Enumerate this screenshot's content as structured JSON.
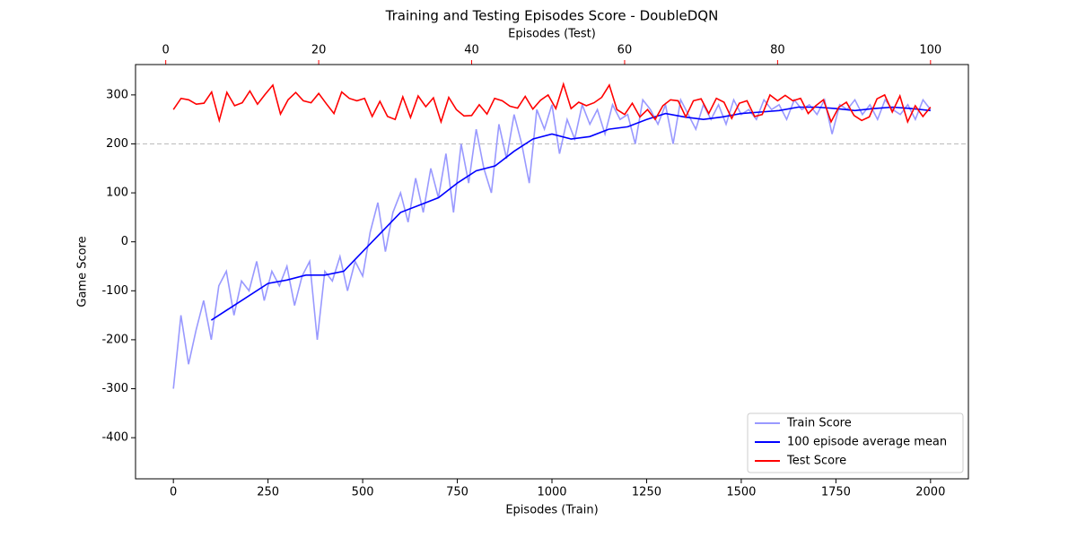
{
  "chart_data": {
    "type": "line",
    "title": "Training and Testing Episodes Score - DoubleDQN",
    "x_label": "Episodes (Train)",
    "x2_label": "Episodes (Test)",
    "y_label": "Game Score",
    "xlim": [
      -100,
      2100
    ],
    "xticks": [
      0,
      250,
      500,
      750,
      1000,
      1250,
      1500,
      1750,
      2000
    ],
    "x2lim": [
      -3.95,
      104.95
    ],
    "x2ticks": [
      0,
      20,
      40,
      60,
      80,
      100
    ],
    "x2_color": "#ff0000",
    "ylim": [
      -484,
      362
    ],
    "yticks": [
      -400,
      -300,
      -200,
      -100,
      0,
      100,
      200,
      300
    ],
    "reference_line": 200,
    "legend": "lower right",
    "series": [
      {
        "name": "Train Score",
        "color": "#9999ff",
        "x": [
          0,
          20,
          40,
          60,
          80,
          100,
          120,
          140,
          160,
          180,
          200,
          220,
          240,
          260,
          280,
          300,
          320,
          340,
          360,
          380,
          400,
          420,
          440,
          460,
          480,
          500,
          520,
          540,
          560,
          580,
          600,
          620,
          640,
          660,
          680,
          700,
          720,
          740,
          760,
          780,
          800,
          820,
          840,
          860,
          880,
          900,
          920,
          940,
          960,
          980,
          1000,
          1020,
          1040,
          1060,
          1080,
          1100,
          1120,
          1140,
          1160,
          1180,
          1200,
          1220,
          1240,
          1260,
          1280,
          1300,
          1320,
          1340,
          1360,
          1380,
          1400,
          1420,
          1440,
          1460,
          1480,
          1500,
          1520,
          1540,
          1560,
          1580,
          1600,
          1620,
          1640,
          1660,
          1680,
          1700,
          1720,
          1740,
          1760,
          1780,
          1800,
          1820,
          1840,
          1860,
          1880,
          1900,
          1920,
          1940,
          1960,
          1980,
          2000
        ],
        "values": [
          -300,
          -150,
          -250,
          -180,
          -120,
          -200,
          -90,
          -60,
          -150,
          -80,
          -100,
          -40,
          -120,
          -60,
          -90,
          -50,
          -130,
          -70,
          -40,
          -200,
          -60,
          -80,
          -30,
          -100,
          -40,
          -70,
          20,
          80,
          -20,
          60,
          100,
          40,
          130,
          60,
          150,
          90,
          180,
          60,
          200,
          120,
          230,
          150,
          100,
          240,
          170,
          260,
          200,
          120,
          270,
          230,
          280,
          180,
          250,
          210,
          280,
          240,
          270,
          220,
          280,
          250,
          260,
          200,
          290,
          270,
          240,
          280,
          200,
          290,
          260,
          230,
          280,
          250,
          280,
          240,
          290,
          260,
          270,
          250,
          290,
          270,
          280,
          250,
          290,
          270,
          280,
          260,
          290,
          220,
          280,
          270,
          290,
          260,
          280,
          250,
          290,
          270,
          260,
          280,
          250,
          290,
          270
        ]
      },
      {
        "name": "100 episode average mean",
        "color": "#0000ff",
        "x": [
          100,
          150,
          200,
          250,
          300,
          350,
          400,
          450,
          500,
          550,
          600,
          650,
          700,
          750,
          800,
          850,
          900,
          950,
          1000,
          1050,
          1100,
          1150,
          1200,
          1250,
          1300,
          1350,
          1400,
          1450,
          1500,
          1550,
          1600,
          1650,
          1700,
          1750,
          1800,
          1850,
          1900,
          1950,
          2000
        ],
        "values": [
          -160,
          -135,
          -110,
          -85,
          -78,
          -68,
          -68,
          -60,
          -20,
          20,
          60,
          75,
          90,
          120,
          145,
          155,
          185,
          210,
          220,
          210,
          215,
          230,
          235,
          250,
          262,
          255,
          250,
          255,
          262,
          265,
          268,
          275,
          275,
          272,
          268,
          272,
          275,
          272,
          268
        ]
      },
      {
        "name": "Test Score",
        "color": "#ff0000",
        "xaxis": "x2",
        "x": [
          1,
          2,
          3,
          4,
          5,
          6,
          7,
          8,
          9,
          10,
          11,
          12,
          13,
          14,
          15,
          16,
          17,
          18,
          19,
          20,
          21,
          22,
          23,
          24,
          25,
          26,
          27,
          28,
          29,
          30,
          31,
          32,
          33,
          34,
          35,
          36,
          37,
          38,
          39,
          40,
          41,
          42,
          43,
          44,
          45,
          46,
          47,
          48,
          49,
          50,
          51,
          52,
          53,
          54,
          55,
          56,
          57,
          58,
          59,
          60,
          61,
          62,
          63,
          64,
          65,
          66,
          67,
          68,
          69,
          70,
          71,
          72,
          73,
          74,
          75,
          76,
          77,
          78,
          79,
          80,
          81,
          82,
          83,
          84,
          85,
          86,
          87,
          88,
          89,
          90,
          91,
          92,
          93,
          94,
          95,
          96,
          97,
          98,
          99,
          100
        ],
        "values": [
          270,
          293,
          290,
          281,
          283,
          306,
          248,
          305,
          278,
          284,
          308,
          281,
          301,
          320,
          261,
          290,
          305,
          288,
          284,
          303,
          282,
          262,
          306,
          293,
          288,
          293,
          256,
          287,
          256,
          250,
          296,
          254,
          298,
          276,
          294,
          245,
          295,
          270,
          257,
          258,
          280,
          261,
          293,
          288,
          277,
          273,
          297,
          271,
          289,
          300,
          272,
          322,
          272,
          285,
          278,
          284,
          295,
          320,
          270,
          260,
          283,
          255,
          270,
          250,
          278,
          290,
          288,
          255,
          288,
          292,
          262,
          293,
          285,
          252,
          283,
          288,
          256,
          260,
          300,
          288,
          299,
          288,
          293,
          262,
          278,
          290,
          245,
          275,
          285,
          258,
          248,
          255,
          292,
          300,
          265,
          298,
          245,
          278,
          256,
          275
        ]
      }
    ]
  }
}
